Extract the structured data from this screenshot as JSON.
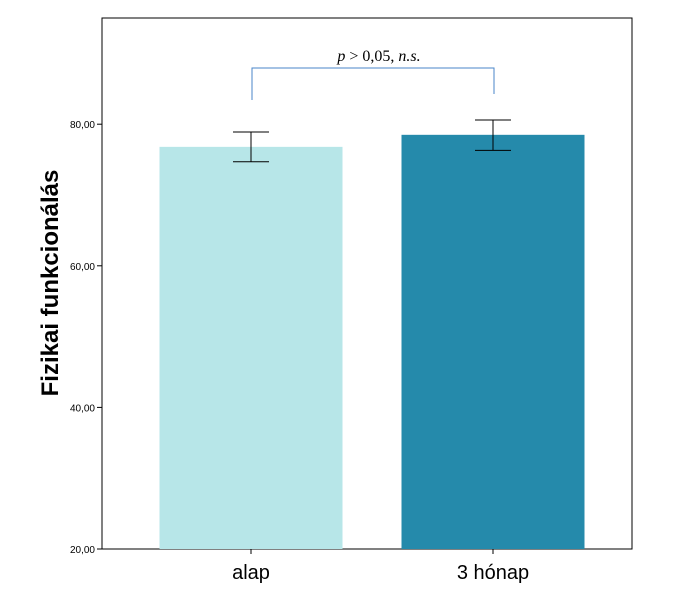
{
  "chart_data": {
    "type": "bar",
    "categories": [
      "alap",
      "3 hónap"
    ],
    "values": [
      76.8,
      78.5
    ],
    "error_bars": [
      {
        "low": 74.7,
        "high": 78.9
      },
      {
        "low": 76.3,
        "high": 80.6
      }
    ],
    "bar_colors": [
      "#b7e6e8",
      "#258aab"
    ],
    "ylabel": "Fizikai funkcionálás",
    "xlabel": "",
    "ylim": [
      20,
      95
    ],
    "yticks": [
      20,
      40,
      60,
      80
    ],
    "ytick_labels": [
      "20,00",
      "40,00",
      "60,00",
      "80,00"
    ],
    "grid": false,
    "annotation": {
      "prefix": "p",
      "middle": " > 0,05, ",
      "suffix": "n.s."
    },
    "bracket_color": "#4a86c8"
  }
}
